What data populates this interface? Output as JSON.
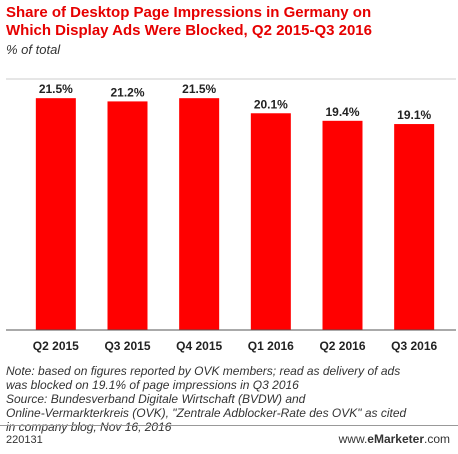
{
  "header": {
    "title_line1": "Share of Desktop Page Impressions in Germany on",
    "title_line2": "Which Display Ads Were Blocked, Q2 2015-Q3 2016",
    "subtitle": "% of total"
  },
  "chart_data": {
    "type": "bar",
    "categories": [
      "Q2 2015",
      "Q3 2015",
      "Q4 2015",
      "Q1 2016",
      "Q2 2016",
      "Q3 2016"
    ],
    "values": [
      21.5,
      21.2,
      21.5,
      20.1,
      19.4,
      19.1
    ],
    "data_labels": [
      "21.5%",
      "21.2%",
      "21.5%",
      "20.1%",
      "19.4%",
      "19.1%"
    ],
    "title": "Share of Desktop Page Impressions in Germany on Which Display Ads Were Blocked, Q2 2015-Q3 2016",
    "ylabel": "",
    "xlabel": "",
    "ylim": [
      0,
      23
    ],
    "grid": false,
    "bar_color": "#ff0000"
  },
  "notes": {
    "line1": "Note: based on figures reported by OVK members; read as delivery of ads",
    "line2": "was blocked on 19.1% of page impressions in Q3 2016",
    "line3": "Source: Bundesverband Digitale Wirtschaft (BVDW) and",
    "line4": "Online-Vermarkterkreis (OVK), \"Zentrale Adblocker-Rate des OVK\" as cited",
    "line5": "in company blog, Nov 16, 2016"
  },
  "footer": {
    "id": "220131",
    "brand_prefix": "www.",
    "brand_name": "eMarketer",
    "brand_suffix": ".com"
  }
}
